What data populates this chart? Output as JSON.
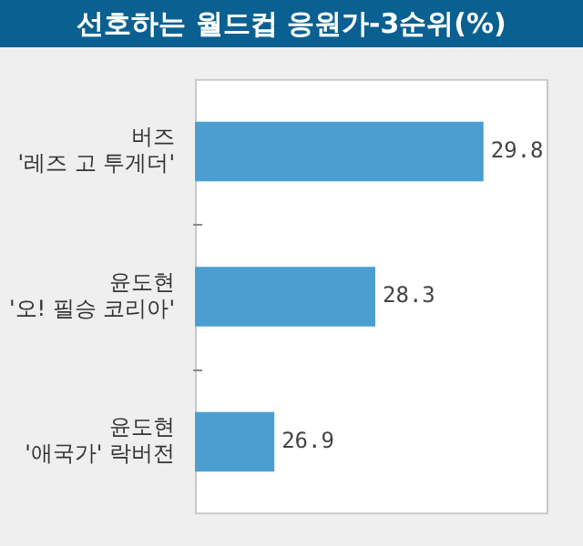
{
  "chart_data": {
    "type": "bar",
    "orientation": "horizontal",
    "title": "선호하는 월드컵 응원가-3순위(%)",
    "categories": [
      "버즈\n'레즈 고 투게더'",
      "윤도현\n'오! 필승 코리아'",
      "윤도현\n'애국가' 락버전"
    ],
    "values": [
      29.8,
      28.3,
      26.9
    ],
    "color": "#4a9fd0",
    "xlim": [
      25.8,
      30.7
    ],
    "data_labels": true,
    "tick_labels": "y",
    "legend": false
  }
}
